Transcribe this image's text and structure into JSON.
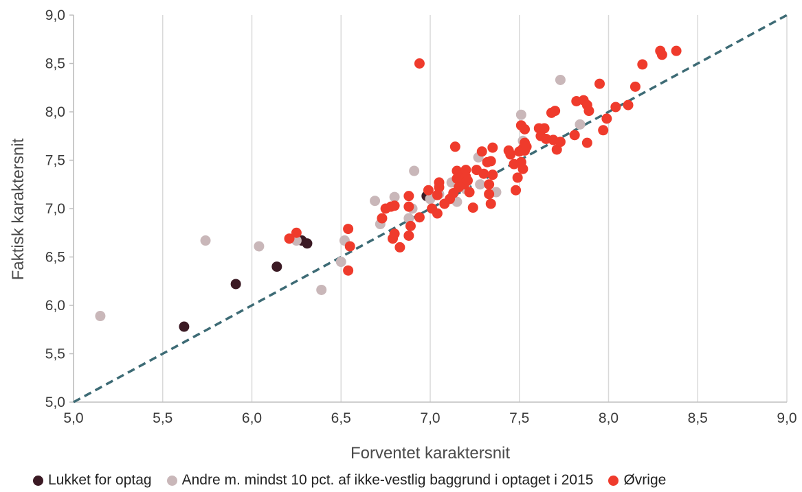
{
  "chart_data": {
    "type": "scatter",
    "xlabel": "Forventet karaktersnit",
    "ylabel": "Faktisk karaktersnit",
    "xlim": [
      5.0,
      9.0
    ],
    "ylim": [
      5.0,
      9.0
    ],
    "x_ticks": [
      "5,0",
      "5,5",
      "6,0",
      "6,5",
      "7,0",
      "7,5",
      "8,0",
      "8,5",
      "9,0"
    ],
    "y_ticks": [
      "5,0",
      "5,5",
      "6,0",
      "6,5",
      "7,0",
      "7,5",
      "8,0",
      "8,5",
      "9,0"
    ],
    "grid": "vertical",
    "legend_position": "bottom",
    "reference_line": {
      "type": "diagonal",
      "from": [
        5.0,
        5.0
      ],
      "to": [
        9.0,
        9.0
      ],
      "color": "#3d6b75",
      "style": "dashed"
    },
    "series": [
      {
        "name": "Lukket for optag",
        "color": "#3b1a24",
        "points": [
          [
            5.62,
            5.78
          ],
          [
            5.91,
            6.22
          ],
          [
            6.14,
            6.4
          ],
          [
            6.28,
            6.67
          ],
          [
            6.31,
            6.64
          ],
          [
            6.98,
            7.13
          ]
        ]
      },
      {
        "name": "Andre m. mindst 10 pct. af ikke-vestlig baggrund i optaget i 2015",
        "color": "#c9b7b9",
        "points": [
          [
            5.15,
            5.89
          ],
          [
            5.74,
            6.67
          ],
          [
            6.04,
            6.61
          ],
          [
            6.25,
            6.67
          ],
          [
            6.39,
            6.16
          ],
          [
            6.5,
            6.45
          ],
          [
            6.52,
            6.67
          ],
          [
            6.69,
            7.08
          ],
          [
            6.72,
            6.84
          ],
          [
            6.8,
            7.12
          ],
          [
            6.88,
            6.9
          ],
          [
            6.9,
            7.0
          ],
          [
            6.91,
            7.39
          ],
          [
            7.0,
            7.1
          ],
          [
            7.05,
            7.15
          ],
          [
            7.12,
            7.27
          ],
          [
            7.15,
            7.07
          ],
          [
            7.18,
            7.35
          ],
          [
            7.2,
            7.2
          ],
          [
            7.27,
            7.53
          ],
          [
            7.28,
            7.25
          ],
          [
            7.37,
            7.17
          ],
          [
            7.51,
            7.97
          ],
          [
            7.52,
            7.7
          ],
          [
            7.73,
            8.33
          ],
          [
            7.84,
            7.87
          ]
        ]
      },
      {
        "name": "Øvrige",
        "color": "#ef3b2c",
        "points": [
          [
            6.94,
            8.5
          ],
          [
            6.21,
            6.69
          ],
          [
            6.25,
            6.75
          ],
          [
            6.54,
            6.79
          ],
          [
            6.55,
            6.61
          ],
          [
            6.54,
            6.36
          ],
          [
            6.73,
            6.9
          ],
          [
            6.75,
            7.0
          ],
          [
            6.78,
            7.02
          ],
          [
            6.8,
            7.03
          ],
          [
            6.79,
            6.69
          ],
          [
            6.8,
            6.74
          ],
          [
            6.83,
            6.6
          ],
          [
            6.88,
            7.13
          ],
          [
            6.88,
            7.02
          ],
          [
            6.89,
            6.82
          ],
          [
            6.88,
            6.72
          ],
          [
            6.94,
            6.91
          ],
          [
            6.99,
            7.19
          ],
          [
            7.01,
            7.0
          ],
          [
            7.04,
            7.14
          ],
          [
            7.05,
            7.22
          ],
          [
            7.05,
            7.27
          ],
          [
            7.04,
            6.95
          ],
          [
            7.08,
            7.05
          ],
          [
            7.11,
            7.1
          ],
          [
            7.13,
            7.16
          ],
          [
            7.14,
            7.64
          ],
          [
            7.15,
            7.31
          ],
          [
            7.15,
            7.39
          ],
          [
            7.17,
            7.32
          ],
          [
            7.16,
            7.22
          ],
          [
            7.19,
            7.25
          ],
          [
            7.2,
            7.4
          ],
          [
            7.2,
            7.33
          ],
          [
            7.21,
            7.29
          ],
          [
            7.22,
            7.17
          ],
          [
            7.24,
            7.01
          ],
          [
            7.26,
            7.4
          ],
          [
            7.29,
            7.59
          ],
          [
            7.3,
            7.36
          ],
          [
            7.32,
            7.48
          ],
          [
            7.33,
            7.25
          ],
          [
            7.33,
            7.15
          ],
          [
            7.34,
            7.05
          ],
          [
            7.34,
            7.49
          ],
          [
            7.35,
            7.35
          ],
          [
            7.35,
            7.63
          ],
          [
            7.44,
            7.6
          ],
          [
            7.45,
            7.56
          ],
          [
            7.47,
            7.46
          ],
          [
            7.48,
            7.19
          ],
          [
            7.49,
            7.32
          ],
          [
            7.5,
            7.59
          ],
          [
            7.51,
            7.86
          ],
          [
            7.51,
            7.48
          ],
          [
            7.52,
            7.62
          ],
          [
            7.52,
            7.41
          ],
          [
            7.53,
            7.68
          ],
          [
            7.53,
            7.82
          ],
          [
            7.53,
            7.6
          ],
          [
            7.54,
            7.64
          ],
          [
            7.61,
            7.83
          ],
          [
            7.62,
            7.75
          ],
          [
            7.64,
            7.83
          ],
          [
            7.65,
            7.72
          ],
          [
            7.68,
            7.99
          ],
          [
            7.69,
            7.71
          ],
          [
            7.7,
            8.01
          ],
          [
            7.71,
            7.61
          ],
          [
            7.73,
            7.69
          ],
          [
            7.81,
            7.76
          ],
          [
            7.82,
            8.11
          ],
          [
            7.86,
            8.12
          ],
          [
            7.88,
            8.07
          ],
          [
            7.88,
            7.68
          ],
          [
            7.89,
            8.01
          ],
          [
            7.95,
            8.29
          ],
          [
            7.97,
            7.81
          ],
          [
            7.99,
            7.93
          ],
          [
            8.04,
            8.05
          ],
          [
            8.11,
            8.07
          ],
          [
            8.15,
            8.26
          ],
          [
            8.19,
            8.49
          ],
          [
            8.29,
            8.63
          ],
          [
            8.3,
            8.59
          ],
          [
            8.38,
            8.63
          ]
        ]
      }
    ]
  }
}
